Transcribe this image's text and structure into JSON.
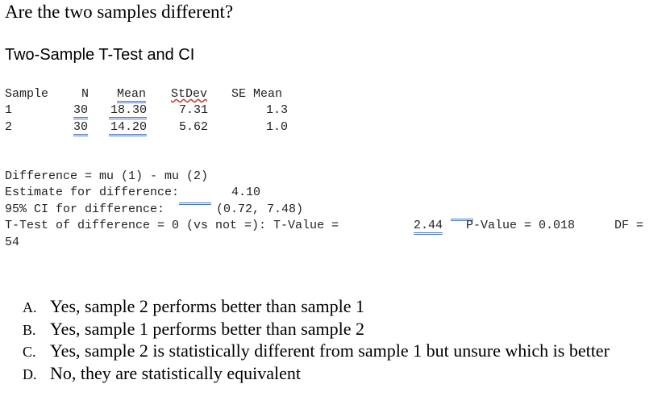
{
  "question": "Are the two samples different?",
  "subtitle": "Two-Sample T-Test and CI",
  "table": {
    "headers": [
      "Sample",
      "N",
      "Mean",
      "StDev",
      "SE Mean"
    ],
    "rows": [
      [
        "1",
        "30",
        "18.30",
        "7.31",
        "1.3"
      ],
      [
        "2",
        "30",
        "14.20",
        "5.62",
        "1.0"
      ]
    ]
  },
  "output": {
    "difference": "Difference = mu (1) - mu (2)",
    "estimate_label": "Estimate for difference:",
    "estimate_value": "4.10",
    "ci_label": "95% CI for difference:",
    "ci_value": "(0.72, 7.48)",
    "ttest_label": "T-Test of difference = 0 (vs not =): T-Value =",
    "t_value": "2.44",
    "p_label": "P-Value = 0.018",
    "df_label": "DF =",
    "df_value": "54"
  },
  "options": [
    {
      "letter": "A.",
      "text": "Yes, sample 2 performs better than sample 1"
    },
    {
      "letter": "B.",
      "text": "Yes, sample 1 performs better than sample 2"
    },
    {
      "letter": "C.",
      "text": "Yes, sample 2 is statistically different from sample 1 but unsure which is better"
    },
    {
      "letter": "D.",
      "text": "No, they are statistically equivalent"
    }
  ]
}
